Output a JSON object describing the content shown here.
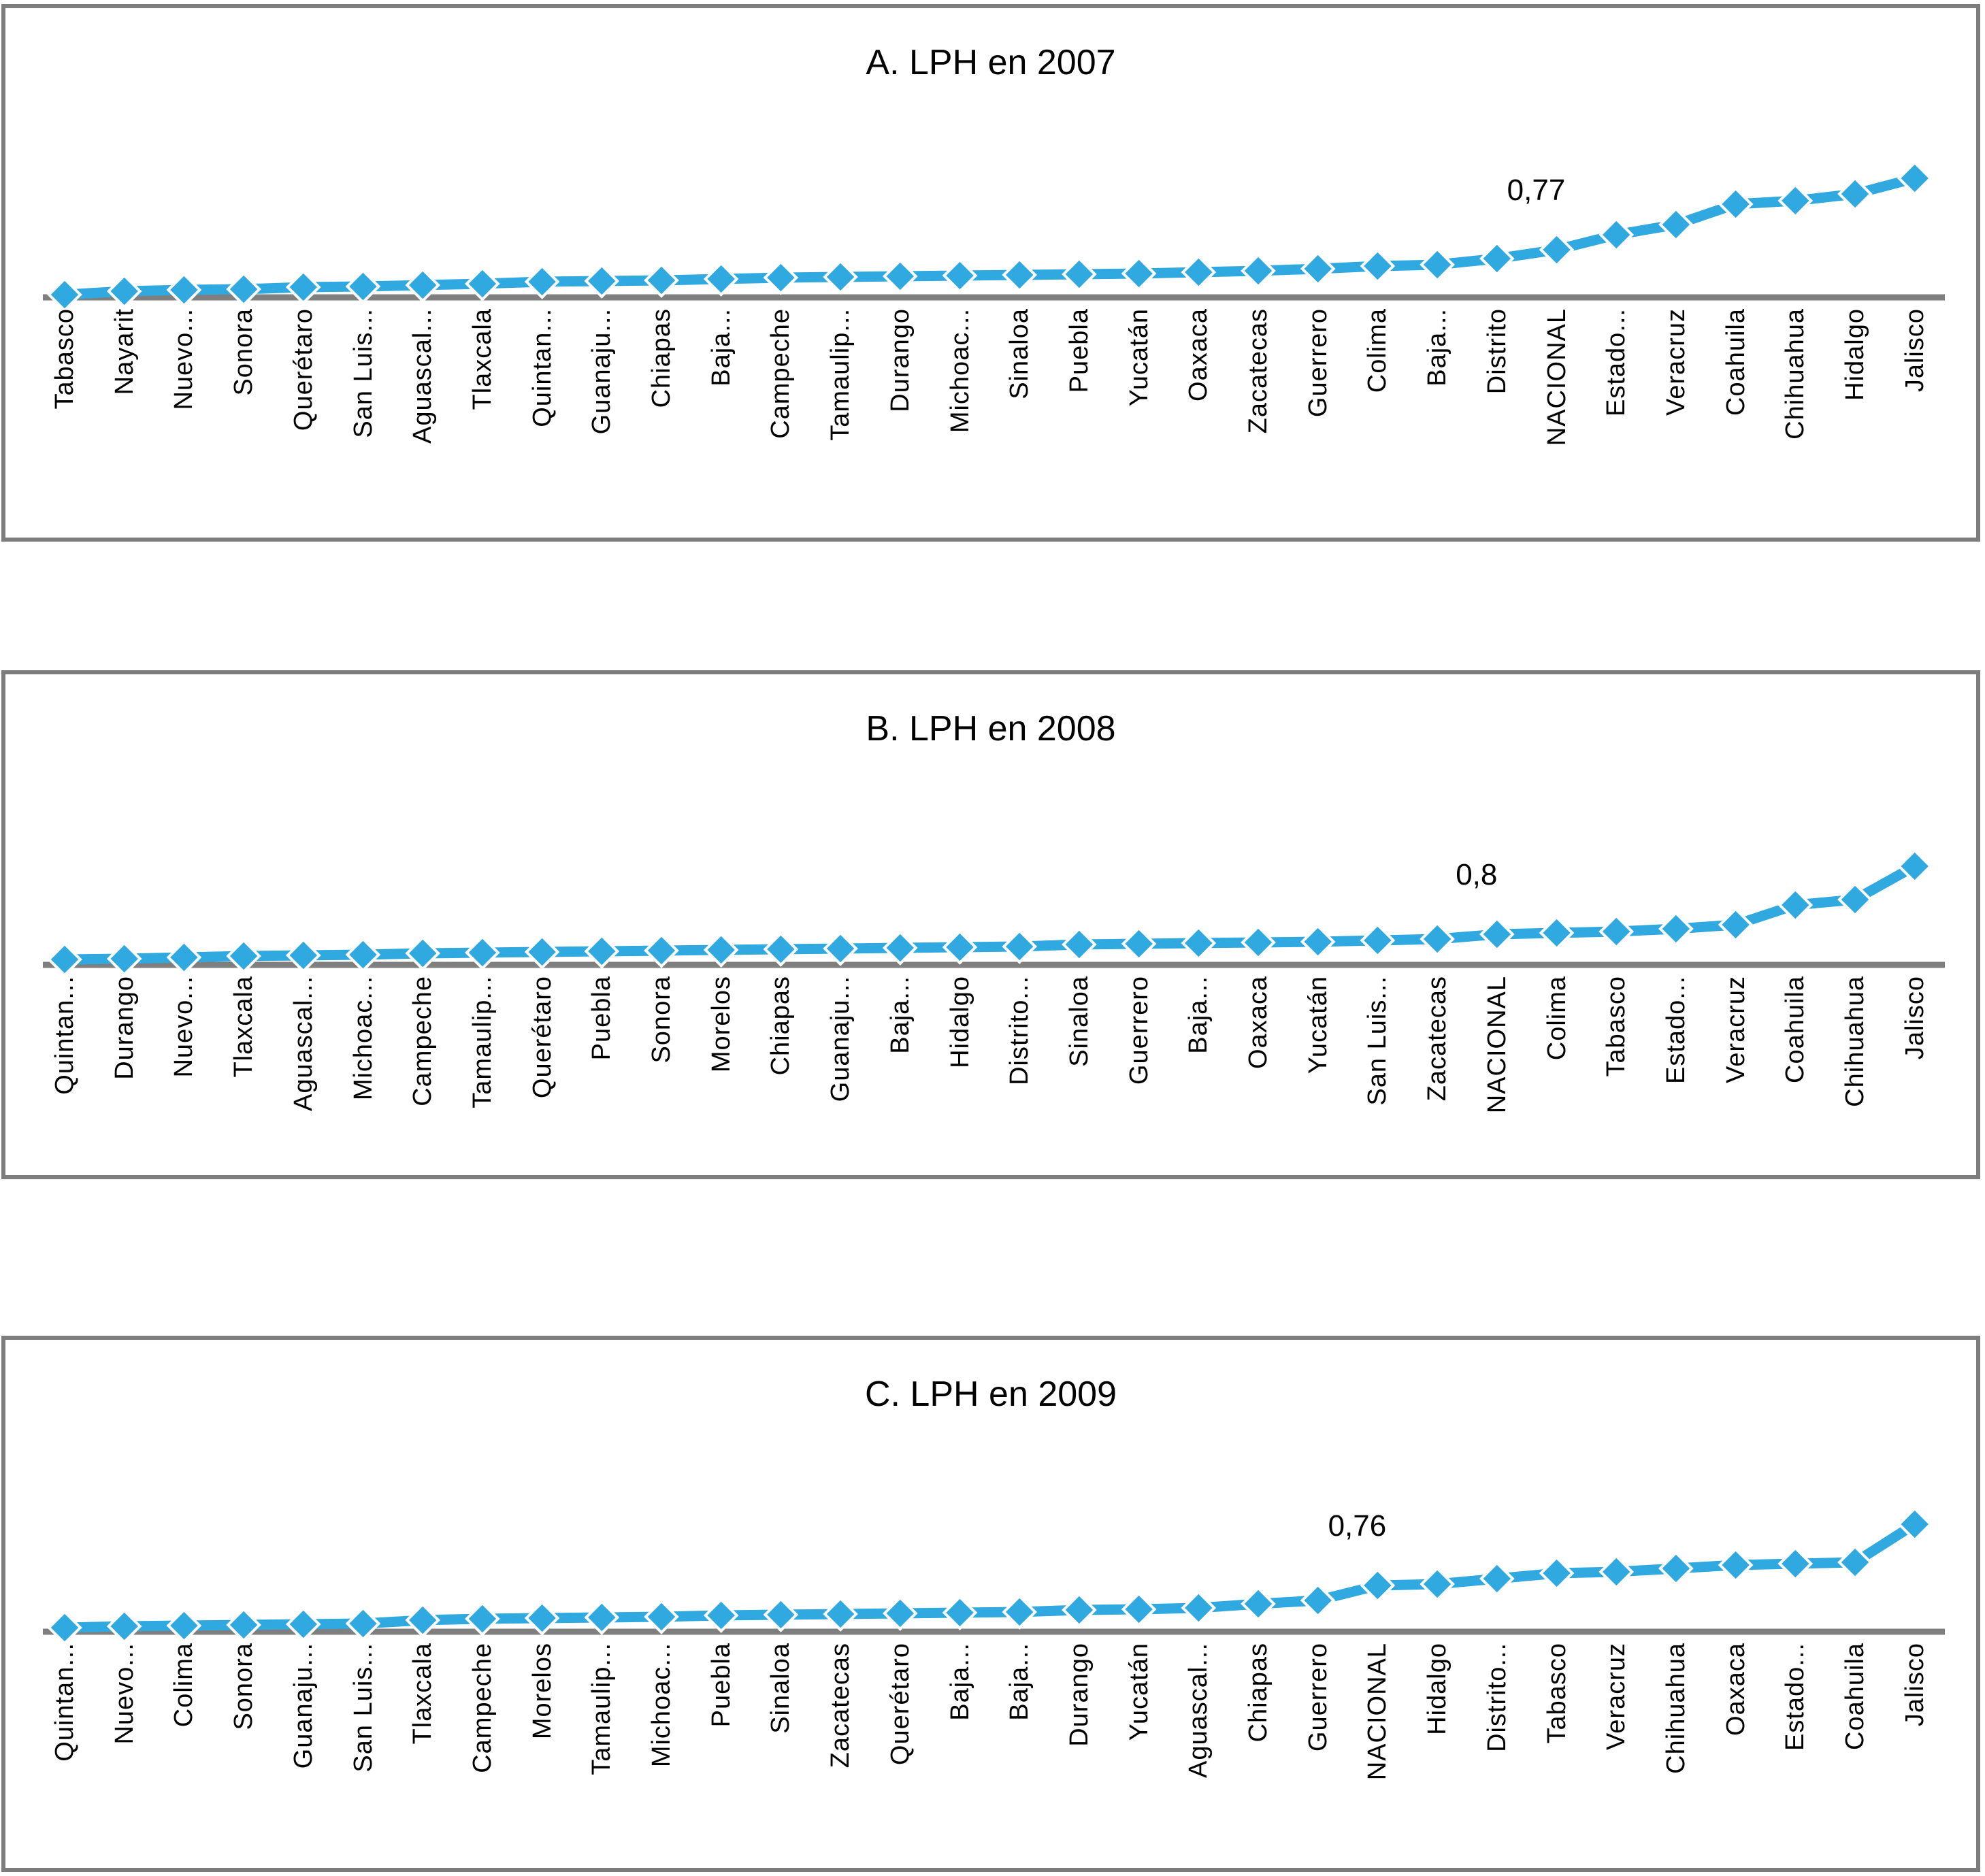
{
  "style": {
    "line_color": "#2FA9E0",
    "marker_halo_color": "#ffffff",
    "axis_color": "#7f7f7f",
    "panel_border_color": "#7d7d7d",
    "text_color": "#000000",
    "background_color": "#ffffff"
  },
  "chart_data": [
    {
      "type": "line",
      "panel_id": "A",
      "title": "A. LPH en 2007",
      "xlabel": "",
      "ylabel": "",
      "y_axis_visible": false,
      "grid": false,
      "legend": false,
      "x_label_rotation_deg": 90,
      "marker": "diamond",
      "baseline_value": 0.7,
      "categories": [
        "Tabasco",
        "Nayarit",
        "Nuevo...",
        "Sonora",
        "Querétaro",
        "San Luis...",
        "Aguascal...",
        "Tlaxcala",
        "Quintan...",
        "Guanaju...",
        "Chiapas",
        "Baja...",
        "Campeche",
        "Tamaulip...",
        "Durango",
        "Michoac...",
        "Sinaloa",
        "Puebla",
        "Yucatán",
        "Oaxaca",
        "Zacatecas",
        "Guerrero",
        "Colima",
        "Baja...",
        "Distrito",
        "NACIONAL",
        "Estado...",
        "Veracruz",
        "Coahuila",
        "Chihuahua",
        "Hidalgo",
        "Jalisco"
      ],
      "values": [
        0.704,
        0.709,
        0.711,
        0.712,
        0.715,
        0.716,
        0.718,
        0.72,
        0.723,
        0.724,
        0.725,
        0.727,
        0.729,
        0.73,
        0.731,
        0.732,
        0.733,
        0.734,
        0.735,
        0.737,
        0.739,
        0.742,
        0.746,
        0.748,
        0.757,
        0.77,
        0.792,
        0.807,
        0.837,
        0.842,
        0.852,
        0.875
      ],
      "annotation": {
        "text": "0,77",
        "category": "NACIONAL",
        "index": 25,
        "value": 0.77
      }
    },
    {
      "type": "line",
      "panel_id": "B",
      "title": "B. LPH en 2008",
      "xlabel": "",
      "ylabel": "",
      "y_axis_visible": false,
      "grid": false,
      "legend": false,
      "x_label_rotation_deg": 90,
      "marker": "diamond",
      "baseline_value": 0.755,
      "categories": [
        "Quintan...",
        "Durango",
        "Nuevo...",
        "Tlaxcala",
        "Aguascal...",
        "Michoac...",
        "Campeche",
        "Tamaulip...",
        "Querétaro",
        "Puebla",
        "Sonora",
        "Morelos",
        "Chiapas",
        "Guanaju...",
        "Baja...",
        "Hidalgo",
        "Distrito...",
        "Sinaloa",
        "Guerrero",
        "Baja...",
        "Oaxaca",
        "Yucatán",
        "San Luis...",
        "Zacatecas",
        "NACIONAL",
        "Colima",
        "Tabasco",
        "Estado...",
        "Veracruz",
        "Coahuila",
        "Chihuahua",
        "Jalisco"
      ],
      "values": [
        0.763,
        0.764,
        0.766,
        0.768,
        0.769,
        0.77,
        0.772,
        0.773,
        0.774,
        0.775,
        0.776,
        0.777,
        0.778,
        0.779,
        0.78,
        0.781,
        0.782,
        0.785,
        0.786,
        0.787,
        0.788,
        0.789,
        0.791,
        0.793,
        0.8,
        0.802,
        0.804,
        0.808,
        0.814,
        0.843,
        0.851,
        0.9
      ],
      "annotation": {
        "text": "0,8",
        "category": "NACIONAL",
        "index": 24,
        "value": 0.8
      }
    },
    {
      "type": "line",
      "panel_id": "C",
      "title": "C. LPH en 2009",
      "xlabel": "",
      "ylabel": "",
      "y_axis_visible": false,
      "grid": false,
      "legend": false,
      "x_label_rotation_deg": 90,
      "marker": "diamond",
      "baseline_value": 0.692,
      "categories": [
        "Quintan...",
        "Nuevo...",
        "Colima",
        "Sonora",
        "Guanaju...",
        "San Luis...",
        "Tlaxcala",
        "Campeche",
        "Morelos",
        "Tamaulip...",
        "Michoac...",
        "Puebla",
        "Sinaloa",
        "Zacatecas",
        "Querétaro",
        "Baja...",
        "Baja...",
        "Durango",
        "Yucatán",
        "Aguascal...",
        "Chiapas",
        "Guerrero",
        "NACIONAL",
        "Hidalgo",
        "Distrito...",
        "Tabasco",
        "Veracruz",
        "Chihuahua",
        "Oaxaca",
        "Estado...",
        "Coahuila",
        "Jalisco"
      ],
      "values": [
        0.698,
        0.7,
        0.701,
        0.702,
        0.703,
        0.704,
        0.709,
        0.711,
        0.712,
        0.713,
        0.714,
        0.716,
        0.717,
        0.718,
        0.719,
        0.72,
        0.721,
        0.724,
        0.725,
        0.727,
        0.733,
        0.738,
        0.76,
        0.762,
        0.77,
        0.778,
        0.78,
        0.785,
        0.79,
        0.792,
        0.794,
        0.85
      ],
      "annotation": {
        "text": "0,76",
        "category": "NACIONAL",
        "index": 22,
        "value": 0.76
      }
    }
  ]
}
